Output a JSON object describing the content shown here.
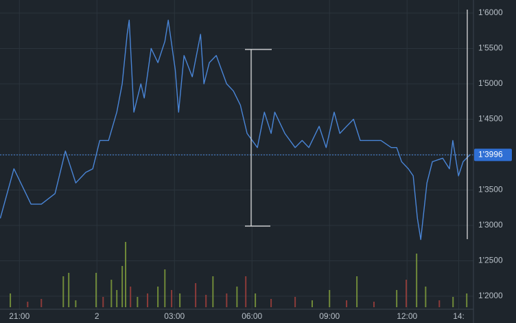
{
  "chart_data": {
    "type": "line",
    "x": [
      -0.74,
      -0.21,
      0.45,
      0.85,
      1.38,
      1.78,
      2.18,
      2.57,
      2.84,
      3.11,
      3.45,
      3.77,
      3.98,
      4.17,
      4.25,
      4.43,
      4.7,
      4.83,
      5.1,
      5.36,
      5.63,
      5.76,
      6.03,
      6.16,
      6.37,
      6.69,
      7.01,
      7.14,
      7.35,
      7.62,
      8.02,
      8.28,
      8.55,
      8.81,
      9.21,
      9.48,
      9.74,
      9.88,
      10.27,
      10.67,
      10.94,
      11.2,
      11.6,
      11.87,
      12.18,
      12.4,
      12.66,
      12.93,
      13.19,
      13.59,
      13.99,
      14.39,
      14.6,
      14.79,
      15.05,
      15.24,
      15.4,
      15.53,
      15.77,
      15.98,
      16.38,
      16.64,
      16.77,
      16.99,
      17.17,
      17.44
    ],
    "series": [
      {
        "color": "#4a86d8",
        "values": [
          1.31,
          1.38,
          1.33,
          1.33,
          1.345,
          1.405,
          1.36,
          1.375,
          1.38,
          1.42,
          1.42,
          1.46,
          1.5,
          1.57,
          1.59,
          1.46,
          1.5,
          1.48,
          1.55,
          1.53,
          1.56,
          1.59,
          1.52,
          1.46,
          1.54,
          1.51,
          1.57,
          1.5,
          1.53,
          1.54,
          1.5,
          1.49,
          1.47,
          1.43,
          1.41,
          1.46,
          1.43,
          1.46,
          1.43,
          1.41,
          1.42,
          1.41,
          1.44,
          1.41,
          1.46,
          1.43,
          1.44,
          1.45,
          1.42,
          1.42,
          1.42,
          1.41,
          1.41,
          1.39,
          1.38,
          1.37,
          1.31,
          1.28,
          1.36,
          1.39,
          1.395,
          1.38,
          1.42,
          1.37,
          1.39,
          1.4
        ]
      }
    ],
    "xlim": [
      -0.75,
      17.57
    ],
    "xticks": [
      {
        "value": 0,
        "label": "21:00"
      },
      {
        "value": 3,
        "label": "2"
      },
      {
        "value": 6,
        "label": "03:00"
      },
      {
        "value": 9,
        "label": "06:00"
      },
      {
        "value": 12,
        "label": "09:00"
      },
      {
        "value": 15,
        "label": "12:00"
      },
      {
        "value": 17,
        "label": "14:"
      }
    ],
    "ylim": [
      1.1816,
      1.6184
    ],
    "yticks": [
      {
        "value": 1.2,
        "label": "1'2000"
      },
      {
        "value": 1.25,
        "label": "1'2500"
      },
      {
        "value": 1.3,
        "label": "1'3000"
      },
      {
        "value": 1.35,
        "label": "1'3500"
      },
      {
        "value": 1.4,
        "label": "1'4000"
      },
      {
        "value": 1.45,
        "label": "1'4500"
      },
      {
        "value": 1.5,
        "label": "1'5000"
      },
      {
        "value": 1.55,
        "label": "1'5500"
      },
      {
        "value": 1.6,
        "label": "1'6000"
      }
    ],
    "grid": true,
    "last_price": {
      "value": 1.3996,
      "label": "1'3996"
    },
    "volume": {
      "x": [
        -0.35,
        0.32,
        0.85,
        1.7,
        1.91,
        2.18,
        2.97,
        3.24,
        3.56,
        3.77,
        3.98,
        4.11,
        4.3,
        4.57,
        4.96,
        5.36,
        5.63,
        5.89,
        6.21,
        6.82,
        7.22,
        7.49,
        8.02,
        8.42,
        8.76,
        9.13,
        9.74,
        10.67,
        11.33,
        12.0,
        12.66,
        13.06,
        13.72,
        14.6,
        14.97,
        15.37,
        15.72,
        16.25,
        16.78,
        17.31
      ],
      "values": [
        20,
        8,
        12,
        45,
        50,
        10,
        50,
        15,
        40,
        25,
        60,
        95,
        30,
        15,
        20,
        30,
        55,
        25,
        20,
        35,
        18,
        45,
        20,
        30,
        45,
        20,
        12,
        15,
        10,
        25,
        10,
        45,
        8,
        25,
        40,
        78,
        30,
        10,
        15,
        20
      ],
      "colors": [
        "#7f9c3c",
        "#a0403c",
        "#a0403c",
        "#7f9c3c",
        "#7f9c3c",
        "#7f9c3c",
        "#7f9c3c",
        "#a0403c",
        "#7f9c3c",
        "#7f9c3c",
        "#7f9c3c",
        "#7f9c3c",
        "#a0403c",
        "#7f9c3c",
        "#a0403c",
        "#7f9c3c",
        "#7f9c3c",
        "#a0403c",
        "#7f9c3c",
        "#a0403c",
        "#a0403c",
        "#7f9c3c",
        "#a0403c",
        "#7f9c3c",
        "#a0403c",
        "#7f9c3c",
        "#a0403c",
        "#a0403c",
        "#7f9c3c",
        "#7f9c3c",
        "#a0403c",
        "#7f9c3c",
        "#a0403c",
        "#7f9c3c",
        "#a0403c",
        "#7f9c3c",
        "#7f9c3c",
        "#a0403c",
        "#7f9c3c",
        "#7f9c3c"
      ],
      "ylim": [
        0,
        100
      ]
    }
  }
}
